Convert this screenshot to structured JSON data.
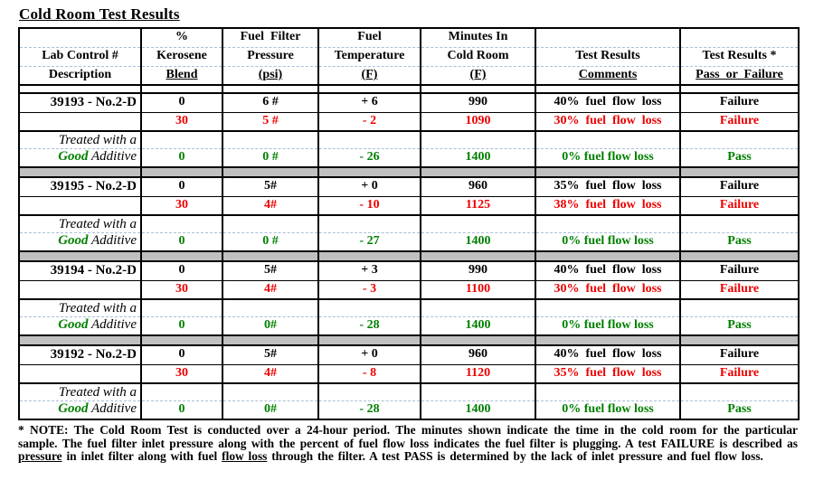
{
  "title": "Cold Room Test Results",
  "colors": {
    "failure_red": "#ee0000",
    "pass_green": "#008000",
    "separator_gray": "#c0c0c0",
    "dashed_line_blue": "#a9bfd8"
  },
  "table": {
    "header_rows": [
      [
        "",
        "%",
        "Fuel  Filter",
        "Fuel",
        "Minutes In",
        "",
        ""
      ],
      [
        "Lab Control #",
        "Kerosene",
        "Pressure",
        "Temperature",
        "Cold Room",
        "Test Results",
        "Test Results *"
      ],
      [
        "Description",
        "Blend",
        "(psi)",
        "(F)",
        "(F)",
        "Comments",
        "Pass  or  Failure"
      ]
    ],
    "groups": [
      {
        "base": [
          "39193 - No.2-D",
          "0",
          "6 #",
          "+ 6",
          "990",
          "40%  fuel  flow  loss",
          "Failure"
        ],
        "blend": [
          "",
          "30",
          "5 #",
          "- 2",
          "1090",
          "30%  fuel  flow  loss",
          "Failure"
        ],
        "treated_label": "Treated with a",
        "treated_good": "Good",
        "treated_rest": " Additive",
        "treated": [
          "",
          "0",
          "0 #",
          "- 26",
          "1400",
          "0% fuel flow loss",
          "Pass"
        ]
      },
      {
        "base": [
          "39195 - No.2-D",
          "0",
          "5#",
          "+ 0",
          "960",
          "35%  fuel  flow  loss",
          "Failure"
        ],
        "blend": [
          "",
          "30",
          "4#",
          "- 10",
          "1125",
          "38%  fuel  flow  loss",
          "Failure"
        ],
        "treated_label": "Treated with a",
        "treated_good": "Good",
        "treated_rest": " Additive",
        "treated": [
          "",
          "0",
          "0 #",
          "- 27",
          "1400",
          "0% fuel flow loss",
          "Pass"
        ]
      },
      {
        "base": [
          "39194 - No.2-D",
          "0",
          "5#",
          "+ 3",
          "990",
          "40%  fuel  flow  loss",
          "Failure"
        ],
        "blend": [
          "",
          "30",
          "4#",
          "- 3",
          "1100",
          "30%  fuel  flow  loss",
          "Failure"
        ],
        "treated_label": "Treated with a",
        "treated_good": "Good",
        "treated_rest": " Additive",
        "treated": [
          "",
          "0",
          "0#",
          "- 28",
          "1400",
          "0% fuel flow loss",
          "Pass"
        ]
      },
      {
        "base": [
          "39192 - No.2-D",
          "0",
          "5#",
          "+ 0",
          "960",
          "40%  fuel  flow  loss",
          "Failure"
        ],
        "blend": [
          "",
          "30",
          "4#",
          "- 8",
          "1120",
          "35%  fuel  flow  loss",
          "Failure"
        ],
        "treated_label": "Treated with a",
        "treated_good": "Good",
        "treated_rest": " Additive",
        "treated": [
          "",
          "0",
          "0#",
          "- 28",
          "1400",
          "0% fuel flow loss",
          "Pass"
        ]
      }
    ]
  },
  "note": {
    "segments": [
      {
        "t": "* NOTE: The Cold Room Test is conducted over a 24-hour period. The minutes shown indicate the time in the cold room for the particular sample. The fuel filter inlet pressure along with the percent of fuel flow loss indicates the fuel filter is plugging. A test FAILURE is described as ",
        "u": false
      },
      {
        "t": "pressure",
        "u": true
      },
      {
        "t": " in inlet filter along with fuel ",
        "u": false
      },
      {
        "t": "flow loss",
        "u": true
      },
      {
        "t": " through the filter. A test PASS is determined by the lack of inlet pressure and fuel flow loss.",
        "u": false
      }
    ]
  }
}
